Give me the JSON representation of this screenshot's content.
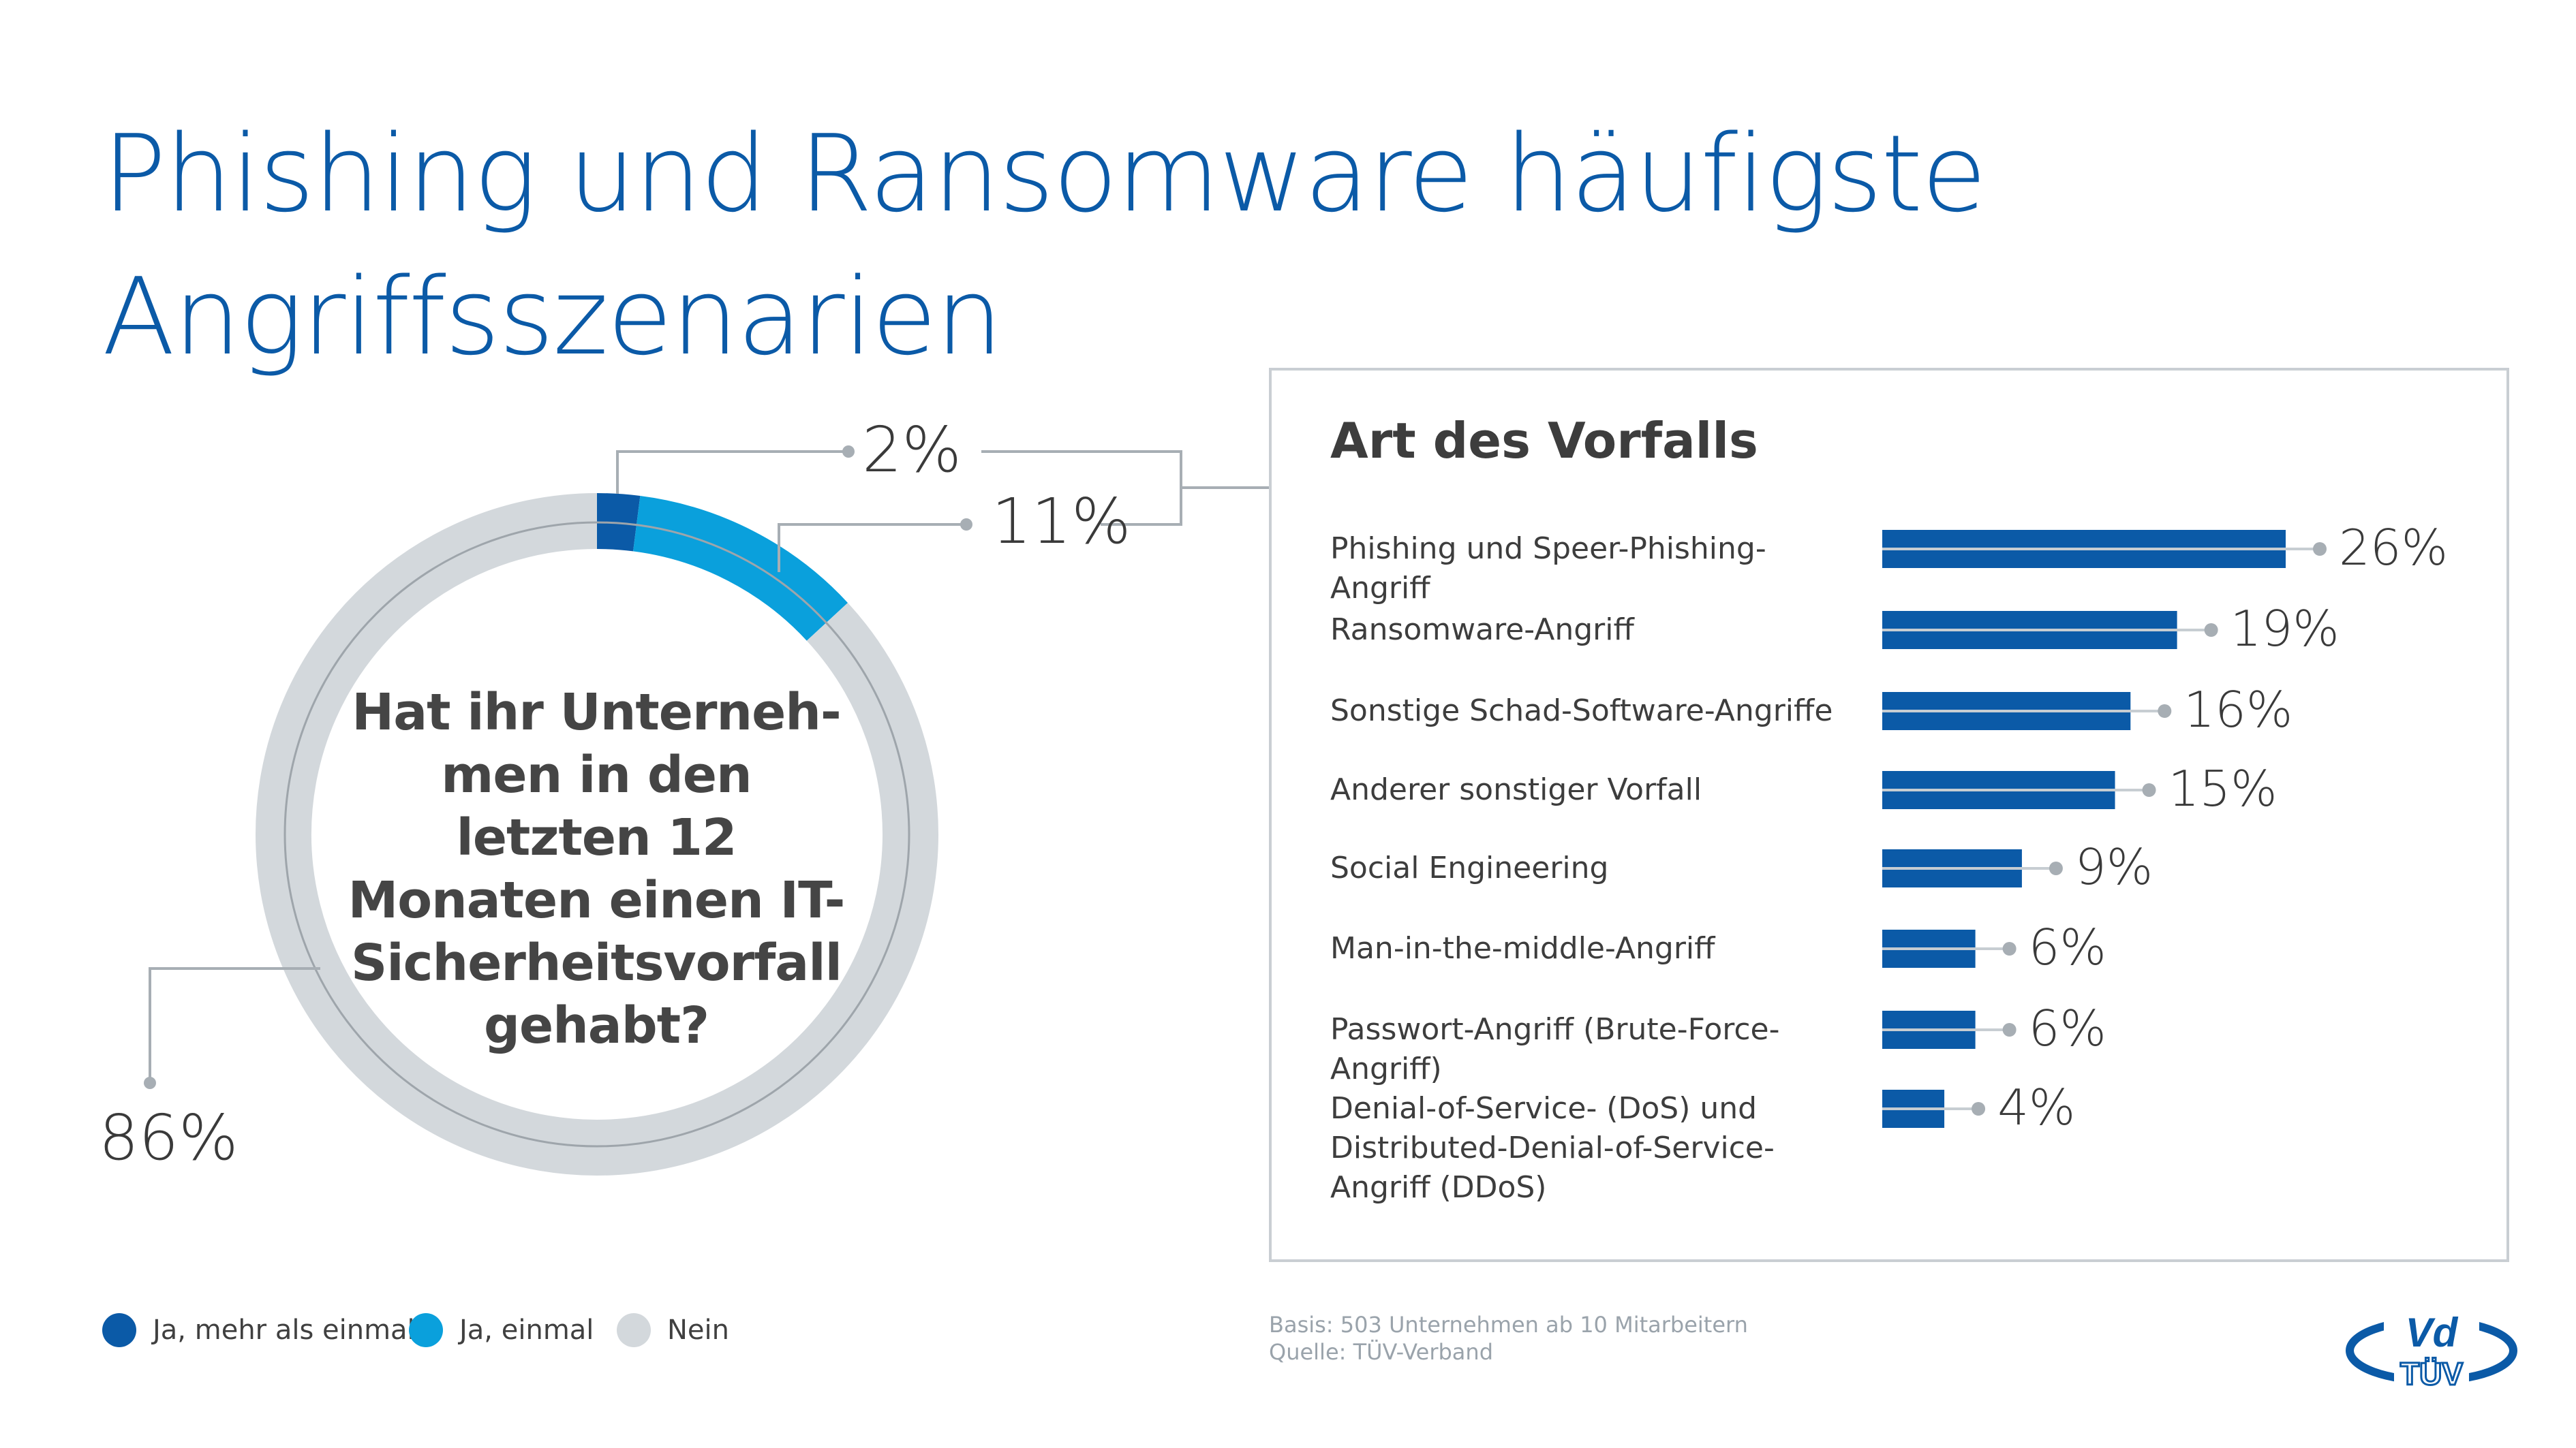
{
  "title": {
    "line1": "Phishing und Ransomware häufigste",
    "line2": "Angriffsszenarien"
  },
  "donut": {
    "question": "Hat ihr Unterneh- men in den letzten 12 Monaten einen IT-Sicherheitsvorfall gehabt?",
    "segments": [
      {
        "name": "Ja, mehr als einmal",
        "value": 2,
        "label": "2%",
        "color": "#0b5aa7"
      },
      {
        "name": "Ja, einmal",
        "value": 11,
        "label": "11%",
        "color": "#0aa0dc"
      },
      {
        "name": "Nein",
        "value": 86,
        "label": "86%",
        "color": "#d3d8dc"
      }
    ]
  },
  "chart_data": {
    "type": "bar",
    "title": "Art des Vorfalls",
    "categories": [
      "Phishing und Speer-Phishing-Angriff",
      "Ransomware-Angriff",
      "Sonstige Schad-Software-Angriffe",
      "Anderer sonstiger Vorfall",
      "Social Engineering",
      "Man-in-the-middle-Angriff",
      "Passwort-Angriff (Brute-Force-Angriff)",
      "Denial-of-Service- (DoS) und Distributed-Denial-of-Service-Angriff (DDoS)"
    ],
    "values": [
      26,
      19,
      16,
      15,
      9,
      6,
      6,
      4
    ],
    "value_labels": [
      "26%",
      "19%",
      "16%",
      "15%",
      "9%",
      "6%",
      "6%",
      "4%"
    ],
    "color": "#0b5aa7"
  },
  "legend": [
    {
      "label": "Ja, mehr als einmal",
      "color": "#0b5aa7"
    },
    {
      "label": "Ja, einmal",
      "color": "#0aa0dc"
    },
    {
      "label": "Nein",
      "color": "#d3d8dc"
    }
  ],
  "notes": {
    "basis": "Basis: 503 Unternehmen ab 10 Mitarbeitern",
    "source": "Quelle: TÜV-Verband"
  },
  "logo": {
    "top": "Vd",
    "bottom": "TÜV",
    "color": "#0b5aa7"
  }
}
